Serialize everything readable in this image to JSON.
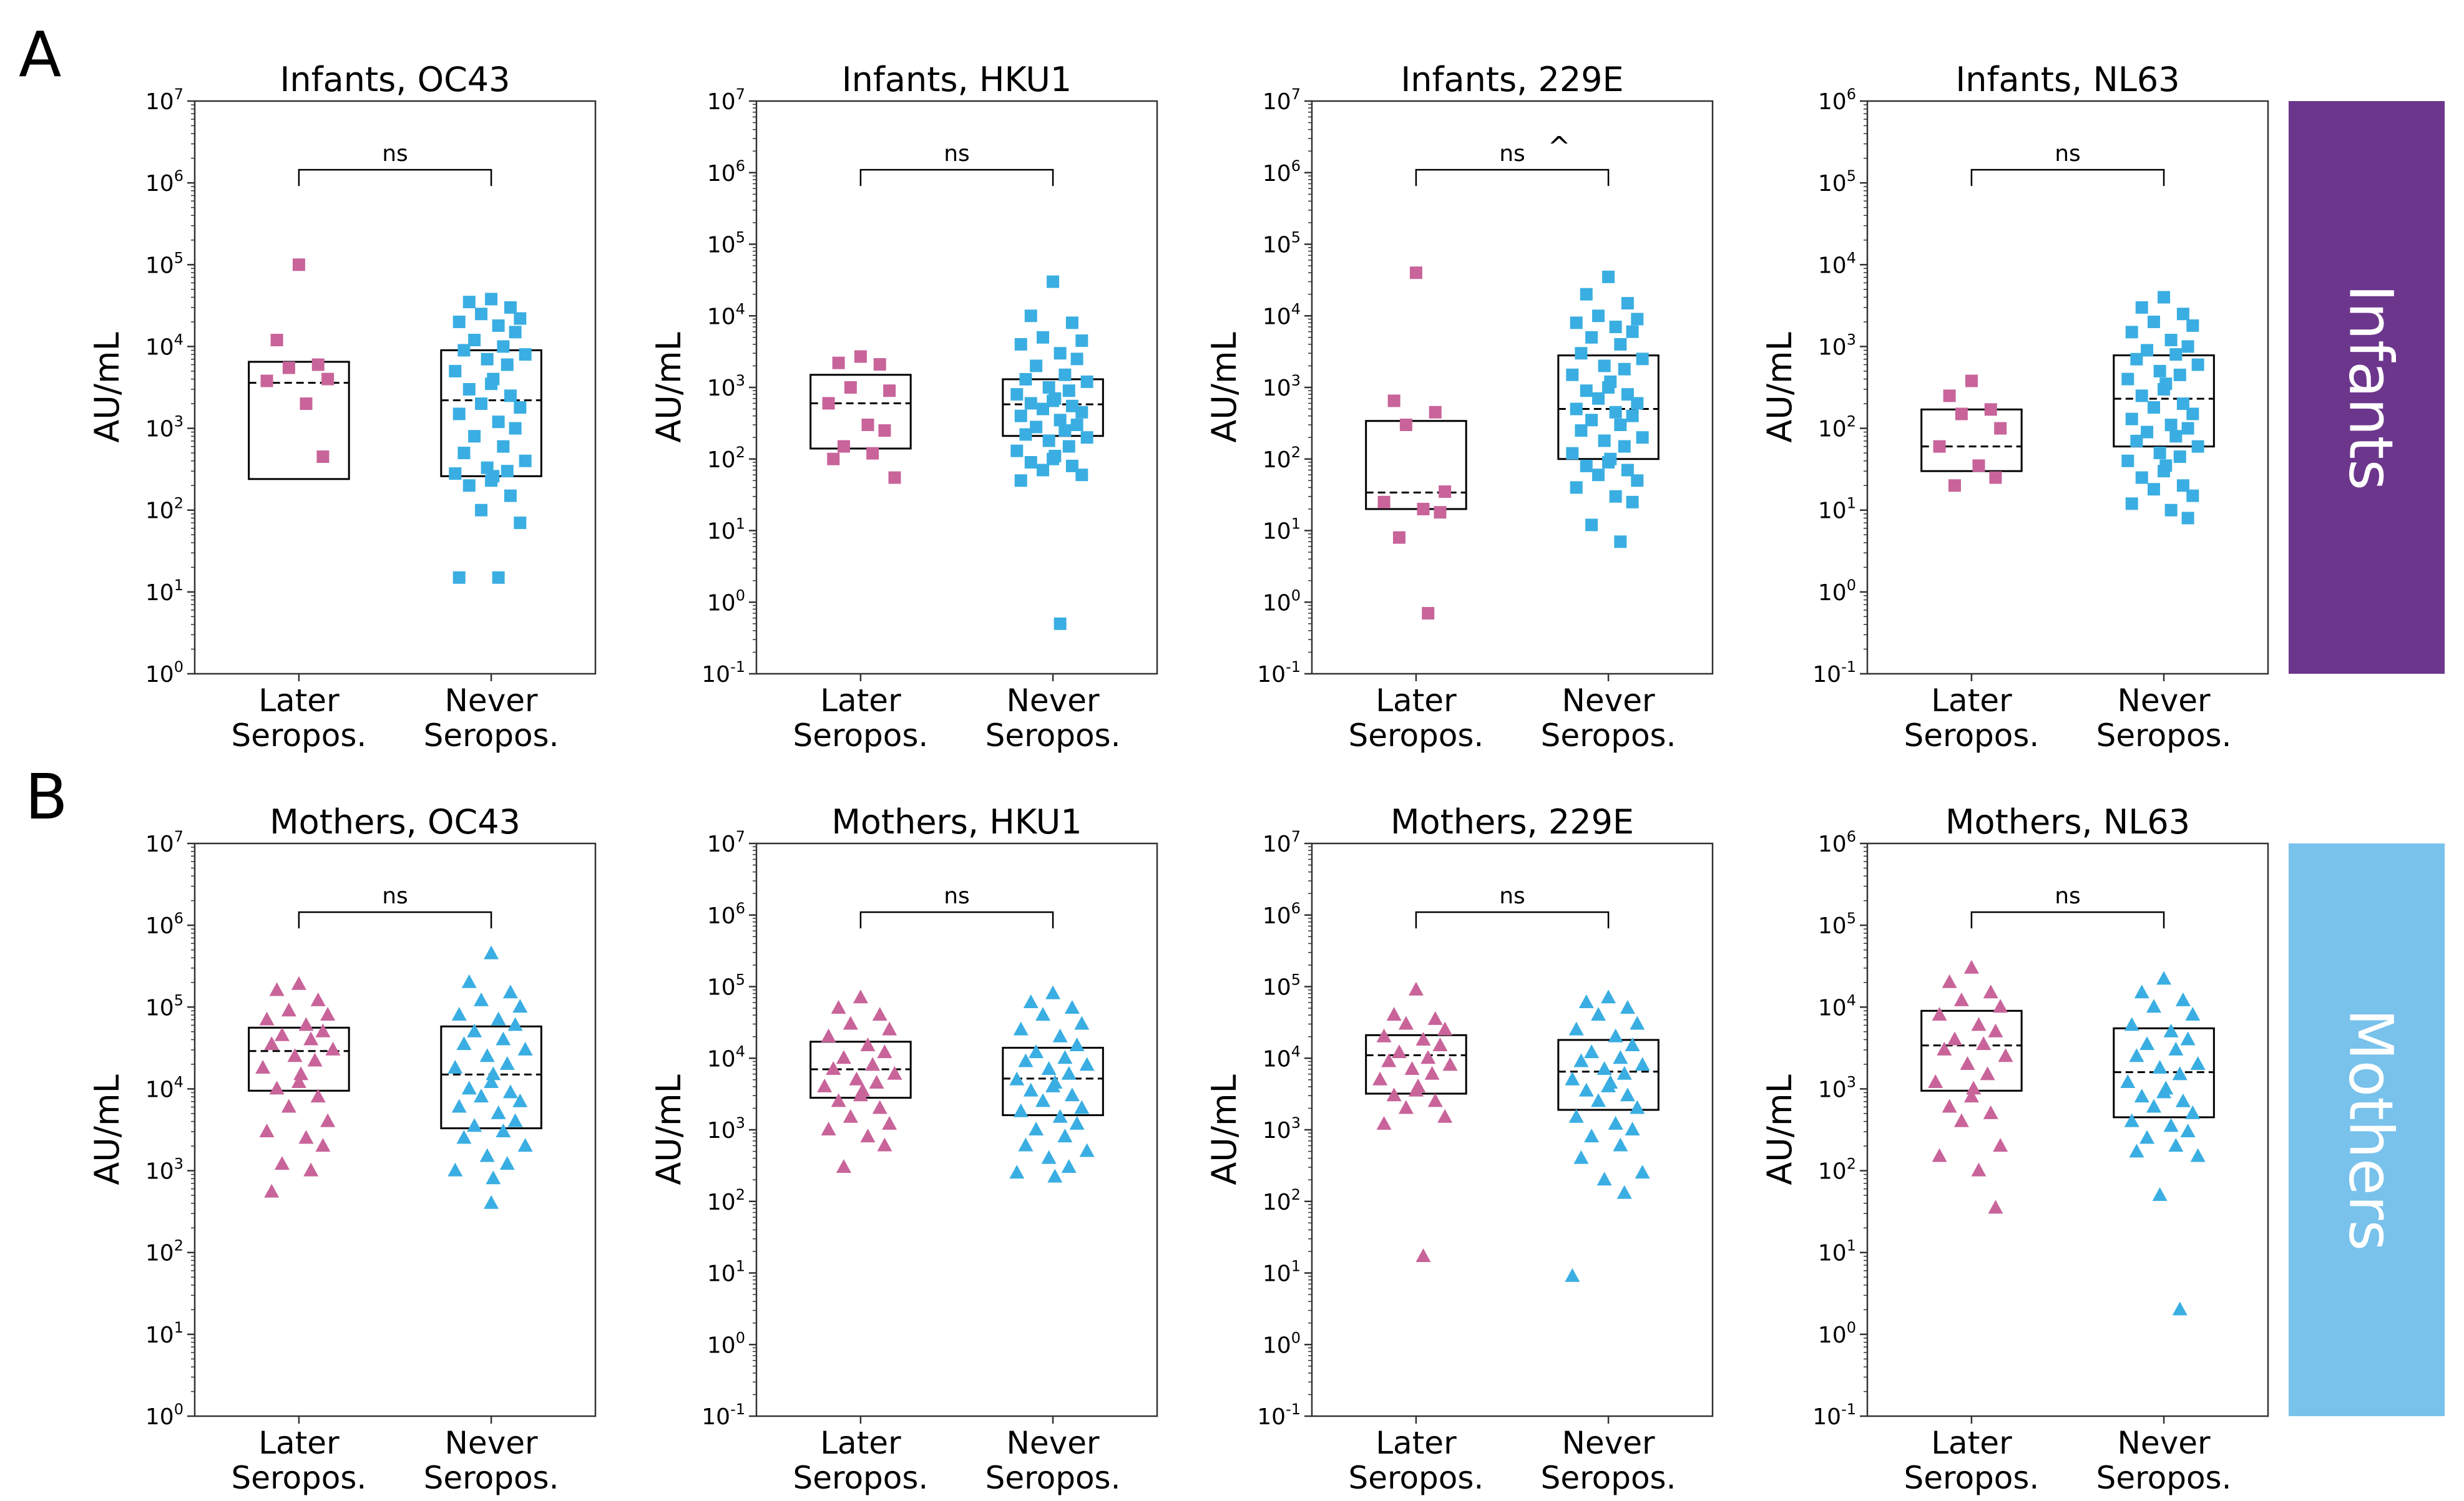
{
  "panel_labels": [
    "A",
    "B"
  ],
  "groups": [
    "Later\nSeropos.",
    "Never\nSeropos."
  ],
  "y_label": "AU/mL",
  "colors": {
    "later": "#c8649a",
    "never": "#3aaee2",
    "infants_band": "#6c368c",
    "mothers_band": "#78c2ec"
  },
  "side_labels": {
    "infants": "Infants",
    "mothers": "Mothers"
  },
  "chart_data": [
    {
      "type": "box-strip",
      "title": "Infants, OC43",
      "ylabel": "AU/mL",
      "yscale": "log",
      "ylim_exp": [
        0,
        7
      ],
      "yticks": [
        "10^0",
        "10^1",
        "10^2",
        "10^3",
        "10^4",
        "10^5",
        "10^6",
        "10^7"
      ],
      "marker": "square",
      "annotation": "ns",
      "categories": [
        "Later Seropos.",
        "Never Seropos."
      ],
      "boxes": [
        {
          "q1": 240,
          "median": 3600,
          "q3": 6500
        },
        {
          "q1": 260,
          "median": 2200,
          "q3": 9000
        }
      ],
      "points": [
        [
          100000,
          12000,
          6000,
          5500,
          4000,
          3800,
          2000,
          450
        ],
        [
          38000,
          35000,
          30000,
          25000,
          22000,
          20000,
          18000,
          15000,
          12000,
          10000,
          9000,
          8000,
          7000,
          6000,
          5000,
          4000,
          3500,
          3000,
          2500,
          2000,
          1800,
          1500,
          1200,
          1000,
          800,
          600,
          500,
          400,
          330,
          300,
          280,
          260,
          230,
          200,
          150,
          100,
          70,
          15,
          15
        ]
      ]
    },
    {
      "type": "box-strip",
      "title": "Infants, HKU1",
      "ylabel": "AU/mL",
      "yscale": "log",
      "ylim_exp": [
        -1,
        7
      ],
      "yticks": [
        "10^-1",
        "10^0",
        "10^1",
        "10^2",
        "10^3",
        "10^4",
        "10^5",
        "10^6",
        "10^7"
      ],
      "marker": "square",
      "annotation": "ns",
      "categories": [
        "Later Seropos.",
        "Never Seropos."
      ],
      "boxes": [
        {
          "q1": 140,
          "median": 600,
          "q3": 1500
        },
        {
          "q1": 210,
          "median": 580,
          "q3": 1300
        }
      ],
      "points": [
        [
          2700,
          2200,
          2100,
          1000,
          900,
          600,
          300,
          250,
          150,
          120,
          100,
          55
        ],
        [
          30000,
          10000,
          8000,
          5000,
          4500,
          4000,
          3000,
          2500,
          2000,
          1500,
          1300,
          1200,
          1000,
          900,
          800,
          700,
          650,
          600,
          550,
          500,
          450,
          400,
          350,
          300,
          280,
          250,
          220,
          200,
          180,
          150,
          130,
          110,
          100,
          90,
          80,
          70,
          60,
          50,
          0.5
        ]
      ]
    },
    {
      "type": "box-strip",
      "title": "Infants, 229E",
      "ylabel": "AU/mL",
      "yscale": "log",
      "ylim_exp": [
        -1,
        7
      ],
      "yticks": [
        "10^-1",
        "10^0",
        "10^1",
        "10^2",
        "10^3",
        "10^4",
        "10^5",
        "10^6",
        "10^7"
      ],
      "marker": "square",
      "annotation": "ns",
      "extra_annotation": "^",
      "categories": [
        "Later Seropos.",
        "Never Seropos."
      ],
      "boxes": [
        {
          "q1": 20,
          "median": 34,
          "q3": 340
        },
        {
          "q1": 100,
          "median": 500,
          "q3": 2800
        }
      ],
      "points": [
        [
          40000,
          650,
          450,
          300,
          35,
          25,
          20,
          18,
          8,
          0.7
        ],
        [
          35000,
          20000,
          15000,
          10000,
          9000,
          8000,
          7000,
          6000,
          5000,
          4000,
          3000,
          2500,
          2000,
          1800,
          1500,
          1200,
          1000,
          900,
          800,
          700,
          600,
          500,
          450,
          400,
          350,
          300,
          250,
          200,
          180,
          150,
          120,
          100,
          90,
          80,
          70,
          60,
          50,
          40,
          30,
          25,
          12,
          7
        ]
      ]
    },
    {
      "type": "box-strip",
      "title": "Infants, NL63",
      "ylabel": "AU/mL",
      "yscale": "log",
      "ylim_exp": [
        -1,
        6
      ],
      "yticks": [
        "10^-1",
        "10^0",
        "10^1",
        "10^2",
        "10^3",
        "10^4",
        "10^5",
        "10^6"
      ],
      "marker": "square",
      "annotation": "ns",
      "categories": [
        "Later Seropos.",
        "Never Seropos."
      ],
      "boxes": [
        {
          "q1": 30,
          "median": 60,
          "q3": 170
        },
        {
          "q1": 60,
          "median": 230,
          "q3": 780
        }
      ],
      "points": [
        [
          380,
          250,
          170,
          150,
          100,
          60,
          35,
          25,
          20
        ],
        [
          4000,
          3000,
          2500,
          2000,
          1800,
          1500,
          1200,
          1000,
          900,
          800,
          700,
          600,
          500,
          450,
          400,
          350,
          300,
          250,
          200,
          180,
          150,
          130,
          110,
          100,
          90,
          80,
          70,
          60,
          50,
          45,
          40,
          35,
          30,
          25,
          20,
          18,
          15,
          12,
          10,
          8
        ]
      ]
    },
    {
      "type": "box-strip",
      "title": "Mothers, OC43",
      "ylabel": "AU/mL",
      "yscale": "log",
      "ylim_exp": [
        0,
        7
      ],
      "yticks": [
        "10^0",
        "10^1",
        "10^2",
        "10^3",
        "10^4",
        "10^5",
        "10^6",
        "10^7"
      ],
      "marker": "triangle",
      "annotation": "ns",
      "categories": [
        "Later Seropos.",
        "Never Seropos."
      ],
      "boxes": [
        {
          "q1": 9500,
          "median": 29000,
          "q3": 56000
        },
        {
          "q1": 3300,
          "median": 15000,
          "q3": 58000
        }
      ],
      "points": [
        [
          190000,
          160000,
          120000,
          90000,
          80000,
          70000,
          60000,
          50000,
          45000,
          40000,
          35000,
          30000,
          25000,
          22000,
          18000,
          15000,
          12000,
          10000,
          8000,
          6000,
          4000,
          3000,
          2500,
          2000,
          1200,
          1000,
          550
        ],
        [
          450000,
          200000,
          150000,
          120000,
          100000,
          80000,
          70000,
          60000,
          50000,
          40000,
          35000,
          30000,
          25000,
          20000,
          18000,
          15000,
          12000,
          10000,
          9000,
          8000,
          7000,
          6000,
          5000,
          4000,
          3500,
          3000,
          2500,
          2000,
          1500,
          1200,
          1000,
          800,
          400
        ]
      ]
    },
    {
      "type": "box-strip",
      "title": "Mothers, HKU1",
      "ylabel": "AU/mL",
      "yscale": "log",
      "ylim_exp": [
        -1,
        7
      ],
      "yticks": [
        "10^-1",
        "10^0",
        "10^1",
        "10^2",
        "10^3",
        "10^4",
        "10^5",
        "10^6",
        "10^7"
      ],
      "marker": "triangle",
      "annotation": "ns",
      "categories": [
        "Later Seropos.",
        "Never Seropos."
      ],
      "boxes": [
        {
          "q1": 2800,
          "median": 7000,
          "q3": 17000
        },
        {
          "q1": 1600,
          "median": 5200,
          "q3": 14000
        }
      ],
      "points": [
        [
          70000,
          50000,
          40000,
          30000,
          25000,
          20000,
          15000,
          12000,
          10000,
          8000,
          7000,
          6000,
          5000,
          4500,
          4000,
          3500,
          3000,
          2500,
          2000,
          1500,
          1200,
          1000,
          800,
          600,
          300
        ],
        [
          80000,
          60000,
          50000,
          40000,
          30000,
          25000,
          20000,
          15000,
          12000,
          10000,
          9000,
          8000,
          7000,
          6000,
          5000,
          4500,
          4000,
          3500,
          3000,
          2500,
          2000,
          1800,
          1500,
          1200,
          1000,
          800,
          600,
          500,
          400,
          300,
          250,
          220
        ]
      ]
    },
    {
      "type": "box-strip",
      "title": "Mothers, 229E",
      "ylabel": "AU/mL",
      "yscale": "log",
      "ylim_exp": [
        -1,
        7
      ],
      "yticks": [
        "10^-1",
        "10^0",
        "10^1",
        "10^2",
        "10^3",
        "10^4",
        "10^5",
        "10^6",
        "10^7"
      ],
      "marker": "triangle",
      "annotation": "ns",
      "categories": [
        "Later Seropos.",
        "Never Seropos."
      ],
      "boxes": [
        {
          "q1": 3200,
          "median": 11000,
          "q3": 21000
        },
        {
          "q1": 1900,
          "median": 6500,
          "q3": 18000
        }
      ],
      "points": [
        [
          90000,
          40000,
          35000,
          30000,
          25000,
          20000,
          18000,
          15000,
          12000,
          10000,
          9000,
          8000,
          7000,
          6000,
          5000,
          4000,
          3500,
          3000,
          2500,
          2000,
          1500,
          1200,
          17
        ],
        [
          70000,
          60000,
          50000,
          40000,
          30000,
          25000,
          20000,
          15000,
          12000,
          10000,
          9000,
          8000,
          7000,
          6000,
          5000,
          4500,
          4000,
          3500,
          3000,
          2500,
          2000,
          1500,
          1200,
          1000,
          800,
          600,
          400,
          250,
          200,
          130,
          9
        ]
      ]
    },
    {
      "type": "box-strip",
      "title": "Mothers, NL63",
      "ylabel": "AU/mL",
      "yscale": "log",
      "ylim_exp": [
        -1,
        6
      ],
      "yticks": [
        "10^-1",
        "10^0",
        "10^1",
        "10^2",
        "10^3",
        "10^4",
        "10^5",
        "10^6"
      ],
      "marker": "triangle",
      "annotation": "ns",
      "categories": [
        "Later Seropos.",
        "Never Seropos."
      ],
      "boxes": [
        {
          "q1": 950,
          "median": 3400,
          "q3": 9000
        },
        {
          "q1": 450,
          "median": 1600,
          "q3": 5500
        }
      ],
      "points": [
        [
          30000,
          20000,
          15000,
          12000,
          10000,
          8000,
          6000,
          5000,
          4000,
          3500,
          3000,
          2500,
          2000,
          1500,
          1200,
          1000,
          800,
          600,
          500,
          400,
          200,
          150,
          100,
          35
        ],
        [
          22000,
          15000,
          12000,
          10000,
          8000,
          6000,
          5000,
          4000,
          3500,
          3000,
          2500,
          2000,
          1800,
          1500,
          1200,
          1000,
          900,
          800,
          700,
          600,
          500,
          400,
          350,
          300,
          250,
          200,
          170,
          150,
          50,
          2
        ]
      ]
    }
  ]
}
